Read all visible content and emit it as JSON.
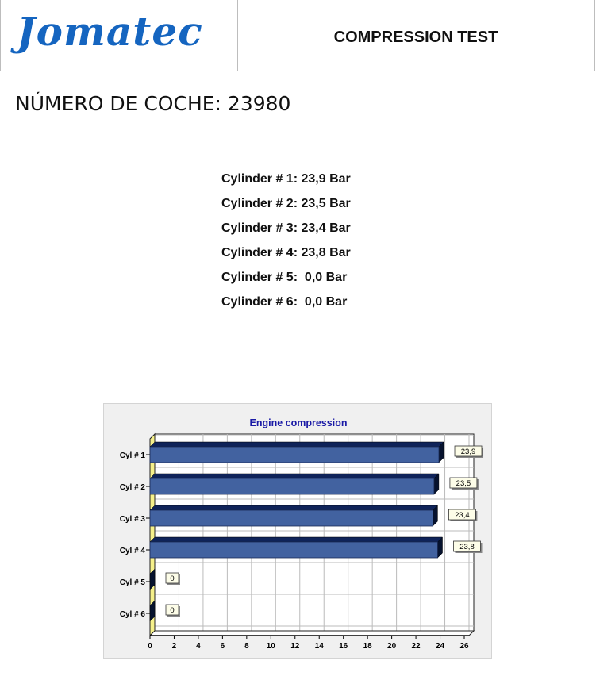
{
  "header": {
    "logo": "Jomatec",
    "title": "COMPRESSION TEST"
  },
  "car": {
    "label": "NÚMERO DE COCHE: 23980"
  },
  "readings": [
    "Cylinder # 1: 23,9 Bar",
    "Cylinder # 2: 23,5 Bar",
    "Cylinder # 3: 23,4 Bar",
    "Cylinder # 4: 23,8 Bar",
    "Cylinder # 5:  0,0 Bar",
    "Cylinder # 6:  0,0 Bar"
  ],
  "chart_data": {
    "type": "bar",
    "orientation": "horizontal",
    "style": "3d",
    "title": "Engine compression",
    "categories": [
      "Cyl # 1",
      "Cyl # 2",
      "Cyl # 3",
      "Cyl # 4",
      "Cyl # 5",
      "Cyl # 6"
    ],
    "values": [
      23.9,
      23.5,
      23.4,
      23.8,
      0,
      0
    ],
    "data_labels": [
      "23,9",
      "23,5",
      "23,4",
      "23,8",
      "0",
      "0"
    ],
    "xlim": [
      0,
      26
    ],
    "xticks": [
      "0",
      "2",
      "4",
      "6",
      "8",
      "10",
      "12",
      "14",
      "16",
      "18",
      "20",
      "22",
      "24",
      "26"
    ],
    "grid": true,
    "colors": {
      "bar": "#4262a0",
      "bar_top": "#0f2359",
      "bar_side": "#06122e",
      "floor": "#f5f08a",
      "title": "#1a1aa6",
      "label_bg": "#fdfde8"
    }
  }
}
